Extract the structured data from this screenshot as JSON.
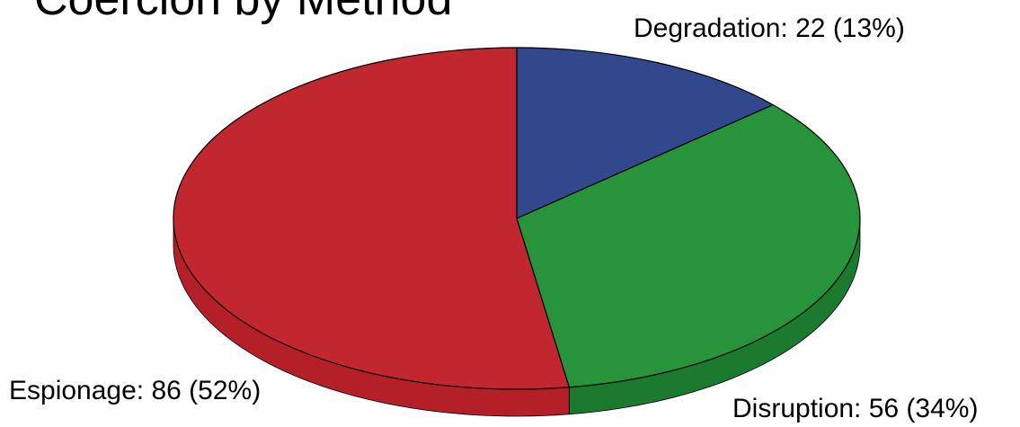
{
  "chart_data": {
    "type": "pie",
    "title": "Coercion by Method",
    "style": "3d",
    "slices": [
      {
        "name": "Degradation",
        "value": 22,
        "percent": 13,
        "label": "Degradation: 22 (13%)",
        "color": "#31498c",
        "side_color": "#1f3068"
      },
      {
        "name": "Disruption",
        "value": 56,
        "percent": 34,
        "label": "Disruption: 56 (34%)",
        "color": "#27943c",
        "side_color": "#1b7a2e"
      },
      {
        "name": "Espionage",
        "value": 86,
        "percent": 52,
        "label": "Espionage: 86 (52%)",
        "color": "#c0272f",
        "side_color": "#b52028"
      }
    ]
  }
}
